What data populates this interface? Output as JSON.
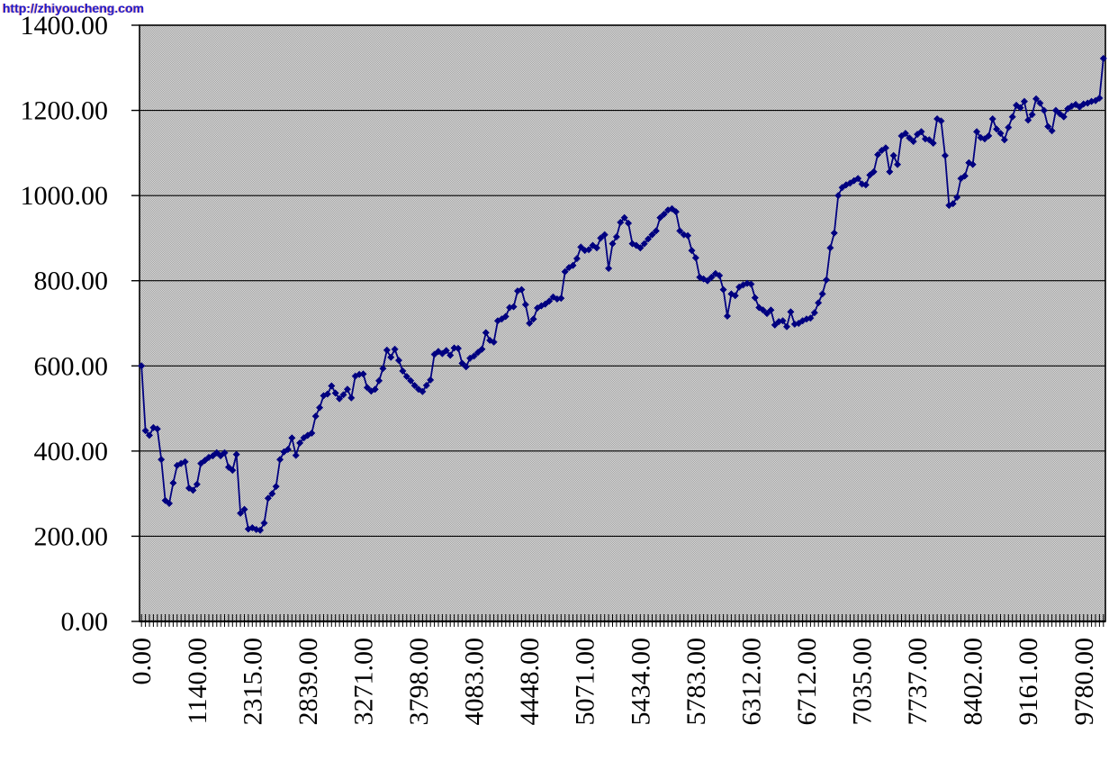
{
  "watermark": "http://zhiyoucheng.com",
  "chart_data": {
    "type": "line",
    "title": "",
    "legend": "none",
    "plot_background": "stippled-gray",
    "grid": "horizontal",
    "ylim": [
      0,
      1400
    ],
    "y_ticks": [
      0,
      200,
      400,
      600,
      800,
      1000,
      1200,
      1400
    ],
    "y_tick_labels": [
      "0.00",
      "200.00",
      "400.00",
      "600.00",
      "800.00",
      "1000.00",
      "1200.00",
      "1400.00"
    ],
    "x_tick_labels": [
      "0.00",
      "1140.00",
      "2315.00",
      "2839.00",
      "3271.00",
      "3798.00",
      "4083.00",
      "4448.00",
      "5071.00",
      "5434.00",
      "5783.00",
      "6312.00",
      "6712.00",
      "7035.00",
      "7737.00",
      "8402.00",
      "9161.00",
      "9780.00"
    ],
    "x_label_interval": 14,
    "colors": {
      "series": "#000080",
      "grid": "#000000",
      "plot_border": "#000000",
      "pattern_base": "#d9d9d9",
      "pattern_dot": "#a2a2a2",
      "background": "#ffffff",
      "watermark": "#1e1ecf"
    },
    "series": [
      {
        "name": "value",
        "marker": "diamond",
        "color": "#000080",
        "values": [
          600,
          448,
          437,
          455,
          452,
          380,
          284,
          277,
          325,
          366,
          371,
          375,
          313,
          308,
          322,
          371,
          378,
          385,
          389,
          396,
          389,
          396,
          362,
          355,
          392,
          254,
          263,
          217,
          220,
          216,
          214,
          231,
          289,
          300,
          317,
          380,
          398,
          404,
          431,
          390,
          419,
          431,
          437,
          442,
          482,
          502,
          530,
          534,
          553,
          536,
          523,
          532,
          545,
          525,
          576,
          580,
          581,
          549,
          541,
          545,
          565,
          594,
          637,
          620,
          639,
          613,
          588,
          575,
          565,
          554,
          545,
          540,
          554,
          567,
          627,
          634,
          629,
          636,
          625,
          642,
          641,
          606,
          598,
          618,
          623,
          632,
          639,
          678,
          660,
          656,
          706,
          710,
          716,
          737,
          739,
          776,
          779,
          744,
          700,
          710,
          736,
          741,
          745,
          752,
          762,
          757,
          759,
          821,
          831,
          836,
          852,
          879,
          871,
          873,
          883,
          877,
          900,
          908,
          829,
          887,
          903,
          937,
          948,
          935,
          887,
          883,
          877,
          887,
          898,
          908,
          917,
          948,
          956,
          966,
          969,
          962,
          917,
          908,
          906,
          871,
          854,
          808,
          804,
          800,
          808,
          817,
          812,
          779,
          717,
          769,
          765,
          785,
          790,
          794,
          792,
          760,
          737,
          731,
          723,
          731,
          696,
          704,
          706,
          692,
          727,
          698,
          700,
          706,
          710,
          712,
          725,
          748,
          769,
          802,
          877,
          912,
          1000,
          1019,
          1025,
          1029,
          1035,
          1040,
          1027,
          1025,
          1048,
          1056,
          1096,
          1106,
          1112,
          1056,
          1094,
          1073,
          1140,
          1146,
          1135,
          1127,
          1144,
          1150,
          1133,
          1131,
          1123,
          1180,
          1175,
          1094,
          977,
          981,
          996,
          1040,
          1046,
          1077,
          1073,
          1150,
          1136,
          1133,
          1140,
          1180,
          1156,
          1146,
          1131,
          1160,
          1185,
          1212,
          1206,
          1221,
          1177,
          1190,
          1227,
          1217,
          1200,
          1162,
          1152,
          1200,
          1192,
          1185,
          1204,
          1210,
          1214,
          1208,
          1215,
          1217,
          1221,
          1223,
          1229,
          1322
        ]
      }
    ]
  }
}
